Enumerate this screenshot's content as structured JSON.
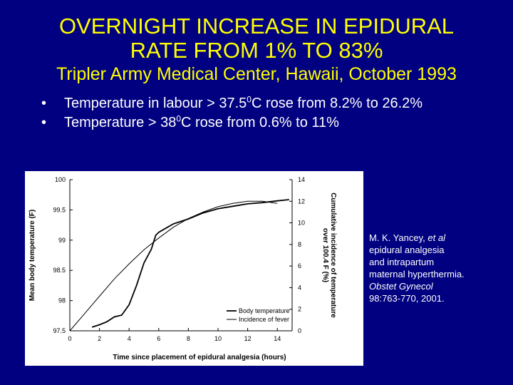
{
  "slide": {
    "title_line1": "OVERNIGHT INCREASE IN EPIDURAL",
    "title_line2": "RATE FROM 1% TO 83%",
    "subtitle": "Tripler Army Medical Center, Hawaii, October 1993",
    "bullets": [
      {
        "pre": "Temperature in labour > 37.5",
        "sup": "0",
        "post": "C rose from 8.2% to 26.2%"
      },
      {
        "pre": "Temperature > 38",
        "sup": "0",
        "post": "C rose from 0.6% to 11%"
      }
    ],
    "bullet_glyph": "•",
    "citation": {
      "author": "M. K. Yancey,",
      "etal": "et al",
      "line2": "epidural analgesia",
      "line3": "and intrapartum",
      "line4": "maternal hyperthermia.",
      "journal": "Obstet Gynecol",
      "ref": "98:763-770, 2001."
    },
    "colors": {
      "background": "#000080",
      "title": "#ffff00",
      "text": "#ffffff"
    }
  },
  "chart_data": {
    "type": "line",
    "xlabel": "Time since placement of epidural analgesia (hours)",
    "ylabel": "Mean body temperature (F)",
    "y2label_line1": "Cumulative incidence of temperature",
    "y2label_line2": "over 100.4 F (%)",
    "x_ticks": [
      "0",
      "2",
      "4",
      "6",
      "8",
      "10",
      "12",
      "14"
    ],
    "y_ticks": [
      "97.5",
      "98",
      "98.5",
      "99",
      "99.5",
      "100"
    ],
    "y2_ticks": [
      "0",
      "2",
      "4",
      "6",
      "8",
      "10",
      "12",
      "14"
    ],
    "xlim": [
      0,
      15
    ],
    "ylim": [
      97.5,
      100
    ],
    "y2lim": [
      0,
      14
    ],
    "legend_position": "bottom-right",
    "series": [
      {
        "name": "Body temperature",
        "axis": "left",
        "x": [
          1.5,
          2,
          2.5,
          3,
          3.5,
          4,
          4.5,
          5,
          5.5,
          5.8,
          6,
          6.5,
          7,
          7.5,
          8,
          9,
          10,
          11,
          12,
          13,
          14,
          14.8
        ],
        "y": [
          97.56,
          97.6,
          97.65,
          97.73,
          97.76,
          97.93,
          98.25,
          98.62,
          98.85,
          99.08,
          99.13,
          99.2,
          99.27,
          99.31,
          99.35,
          99.45,
          99.52,
          99.56,
          99.6,
          99.62,
          99.65,
          99.67
        ]
      },
      {
        "name": "Incidence of fever",
        "axis": "right",
        "x": [
          0,
          1,
          2,
          3,
          4,
          5,
          6,
          7,
          8,
          9,
          10,
          11,
          12,
          13,
          14
        ],
        "y": [
          0,
          1.6,
          3.2,
          4.8,
          6.2,
          7.5,
          8.6,
          9.6,
          10.4,
          11.0,
          11.5,
          11.8,
          12.0,
          12.0,
          11.8
        ]
      }
    ]
  }
}
